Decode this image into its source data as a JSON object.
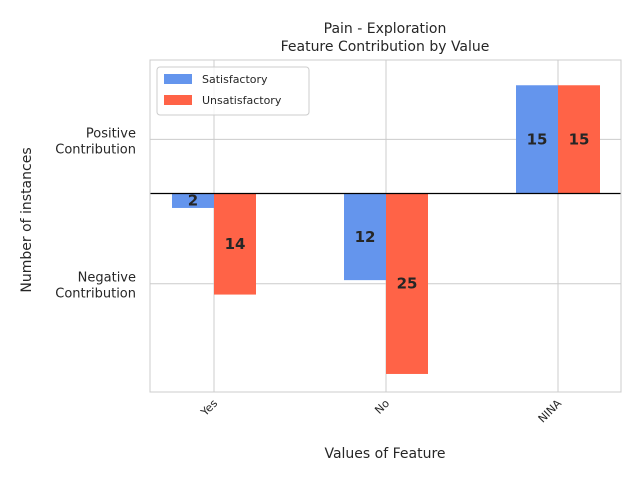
{
  "chart_data": {
    "type": "bar",
    "title_lines": [
      "Pain - Exploration",
      "Feature Contribution by Value"
    ],
    "xlabel": "Values of Feature",
    "ylabel": "Number of instances",
    "categories": [
      "Yes",
      "No",
      "NINA"
    ],
    "series": [
      {
        "name": "Satisfactory",
        "color": "#6495ED",
        "values": [
          -2,
          -12,
          15
        ],
        "labels": [
          "2",
          "12",
          "15"
        ]
      },
      {
        "name": "Unsatisfactory",
        "color": "#FF6347",
        "values": [
          -14,
          -25,
          15
        ],
        "labels": [
          "14",
          "25",
          "15"
        ]
      }
    ],
    "ytick_labels": [
      {
        "value": 7.5,
        "lines": [
          "Positive",
          "Contribution"
        ]
      },
      {
        "value": -12.5,
        "lines": [
          "Negative",
          "Contribution"
        ]
      }
    ],
    "ylim": [
      -27.5,
      18.5
    ],
    "grid": true,
    "legend_position": "upper-left"
  }
}
